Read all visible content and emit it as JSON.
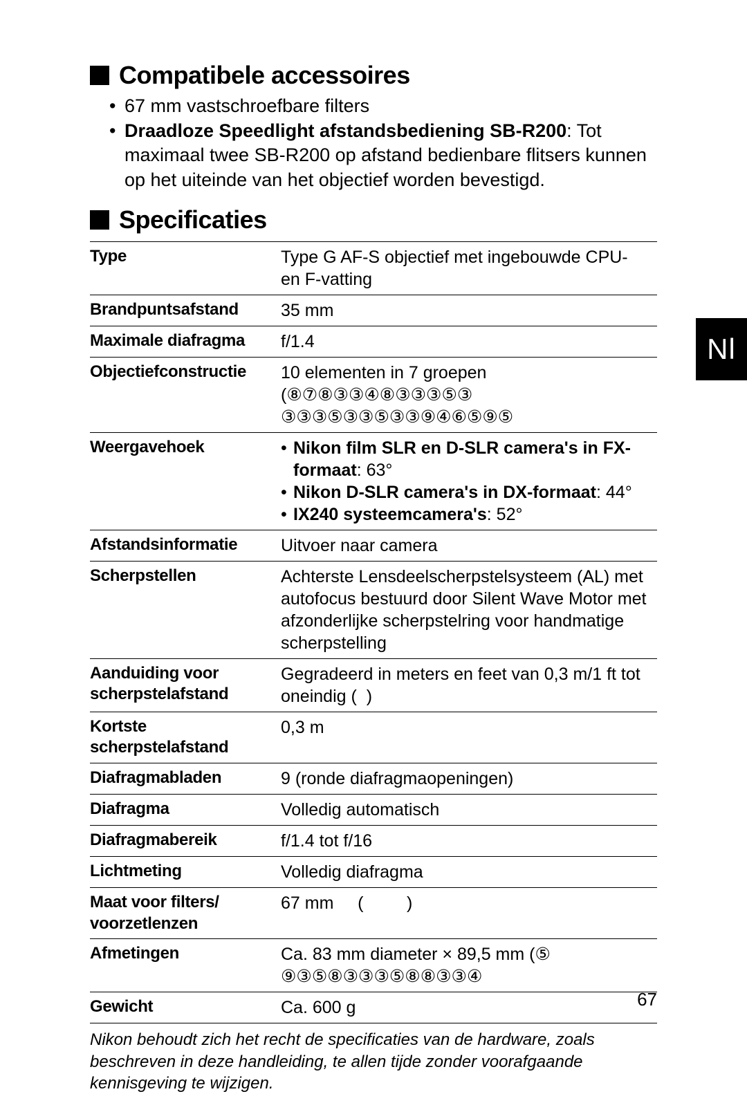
{
  "headings": {
    "accessories": "Compatibele accessoires",
    "specs": "Specificaties"
  },
  "accessories_bullets": [
    {
      "plain": "67 mm vastschroefbare filters"
    },
    {
      "bold": "Draadloze Speedlight afstandsbediening SB-R200",
      "rest": ": Tot maximaal twee SB-R200 op afstand bedienbare flitsers kunnen op het uiteinde van het objectief worden bevestigd."
    }
  ],
  "spec_rows": [
    {
      "label": "Type",
      "value_html": "Type G AF-S objectief met ingebouwde CPU- en F-vatting"
    },
    {
      "label": "Brandpuntsafstand",
      "value_html": "35 mm"
    },
    {
      "label": "Maximale diafragma",
      "value_html": "f/1.4"
    },
    {
      "label": "Objectiefconstructie",
      "value_html": "10 elementen in 7 groepen (⑧⑦⑧③③④⑧③③③⑤③ ③③③⑤③③⑤③③⑨④⑥⑤⑨⑤"
    },
    {
      "label": "Weergavehoek",
      "value_list": [
        {
          "bold": "Nikon film SLR en D-SLR camera's in FX-formaat",
          "rest": ": 63°"
        },
        {
          "bold": "Nikon D-SLR camera's in DX-formaat",
          "rest": ": 44°"
        },
        {
          "bold": "IX240 systeemcamera's",
          "rest": ": 52°"
        }
      ]
    },
    {
      "label": "Afstandsinformatie",
      "value_html": "Uitvoer naar camera"
    },
    {
      "label": "Scherpstellen",
      "value_html": "Achterste Lensdeelscherpstelsysteem (AL) met autofocus bestuurd door Silent Wave Motor met afzonderlijke scherpstelring voor handmatige scherpstelling"
    },
    {
      "label": "Aanduiding voor scherpstelafstand",
      "value_html": "Gegradeerd in meters en feet van 0,3 m/1 ft tot oneindig (&nbsp;&nbsp;)"
    },
    {
      "label": "Kortste scherpstelafstand",
      "value_html": "0,3 m"
    },
    {
      "label": "Diafragmabladen",
      "value_html": "9 (ronde diafragmaopeningen)"
    },
    {
      "label": "Diafragma",
      "value_html": "Volledig automatisch"
    },
    {
      "label": "Diafragmabereik",
      "value_html": "f/1.4 tot f/16"
    },
    {
      "label": "Lichtmeting",
      "value_html": "Volledig diafragma"
    },
    {
      "label": "Maat voor filters/ voorzetlenzen",
      "value_html": "67 mm&nbsp;&nbsp;&nbsp;&nbsp;&nbsp;(&nbsp;&nbsp;&nbsp;&nbsp;&nbsp;&nbsp;&nbsp;&nbsp;&nbsp;)"
    },
    {
      "label": "Afmetingen",
      "value_html": "Ca. 83 mm diameter × 89,5 mm (⑤ ⑨③⑤⑧③③③⑤⑧⑧③③④"
    },
    {
      "label": "Gewicht",
      "value_html": "Ca. 600 g"
    }
  ],
  "footnote": "Nikon behoudt zich het recht de specificaties van de hardware, zoals beschreven in deze handleiding, te allen tijde zonder voorafgaande kennisgeving te wijzigen.",
  "page_number": "67",
  "thumb_tab": "Nl",
  "colors": {
    "page_bg": "#ffffff",
    "text": "#000000",
    "rule": "#000000",
    "tab_bg": "#000000",
    "tab_fg": "#ffffff"
  }
}
